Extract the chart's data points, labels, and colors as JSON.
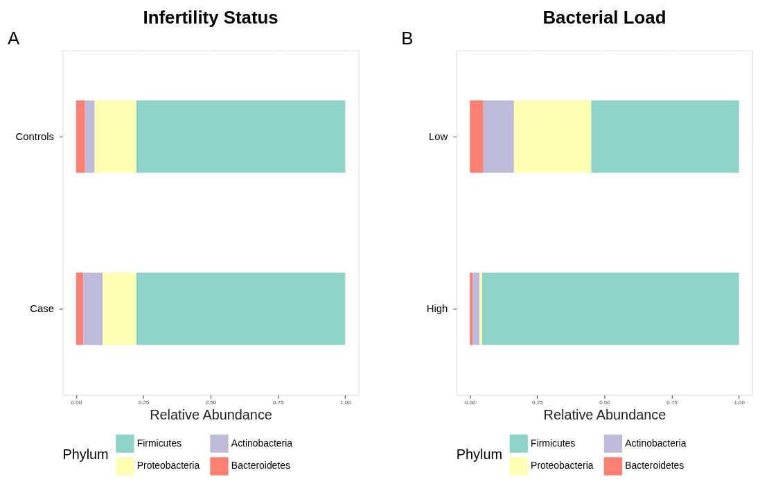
{
  "chart_data": [
    {
      "type": "bar",
      "orientation": "horizontal",
      "stacked": true,
      "title": "Infertility Status",
      "xlabel": "Relative Abundance",
      "legend_title": "Phylum",
      "legend": "bottom",
      "grid": true,
      "annotations": [
        "A"
      ],
      "categories": [
        "Controls",
        "Case"
      ],
      "xlim": [
        -0.05,
        1.05
      ],
      "xticks": [
        {
          "value": 0,
          "label": "0.00"
        },
        {
          "value": 0.25,
          "label": "0.25"
        },
        {
          "value": 0.5,
          "label": "0.50"
        },
        {
          "value": 0.75,
          "label": "0.75"
        },
        {
          "value": 1,
          "label": "1.00"
        }
      ],
      "series": [
        {
          "name": "Bacteroidetes",
          "color": "#fb8072",
          "values": [
            0.033,
            0.027
          ]
        },
        {
          "name": "Actinobacteria",
          "color": "#bebada",
          "values": [
            0.036,
            0.072
          ]
        },
        {
          "name": "Proteobacteria",
          "color": "#ffffb3",
          "values": [
            0.155,
            0.125
          ]
        },
        {
          "name": "Firmicutes",
          "color": "#8dd3c7",
          "values": [
            0.776,
            0.776
          ]
        }
      ]
    },
    {
      "type": "bar",
      "orientation": "horizontal",
      "stacked": true,
      "title": "Bacterial Load",
      "xlabel": "Relative Abundance",
      "legend_title": "Phylum",
      "legend": "bottom",
      "grid": true,
      "annotations": [
        "B"
      ],
      "categories": [
        "Low",
        "High"
      ],
      "xlim": [
        -0.05,
        1.05
      ],
      "xticks": [
        {
          "value": 0,
          "label": "0.00"
        },
        {
          "value": 0.25,
          "label": "0.25"
        },
        {
          "value": 0.5,
          "label": "0.50"
        },
        {
          "value": 0.75,
          "label": "0.75"
        },
        {
          "value": 1,
          "label": "1.00"
        }
      ],
      "series": [
        {
          "name": "Bacteroidetes",
          "color": "#fb8072",
          "values": [
            0.05,
            0.01
          ]
        },
        {
          "name": "Actinobacteria",
          "color": "#bebada",
          "values": [
            0.114,
            0.026
          ]
        },
        {
          "name": "Proteobacteria",
          "color": "#ffffb3",
          "values": [
            0.287,
            0.01
          ]
        },
        {
          "name": "Firmicutes",
          "color": "#8dd3c7",
          "values": [
            0.549,
            0.954
          ]
        }
      ]
    }
  ]
}
